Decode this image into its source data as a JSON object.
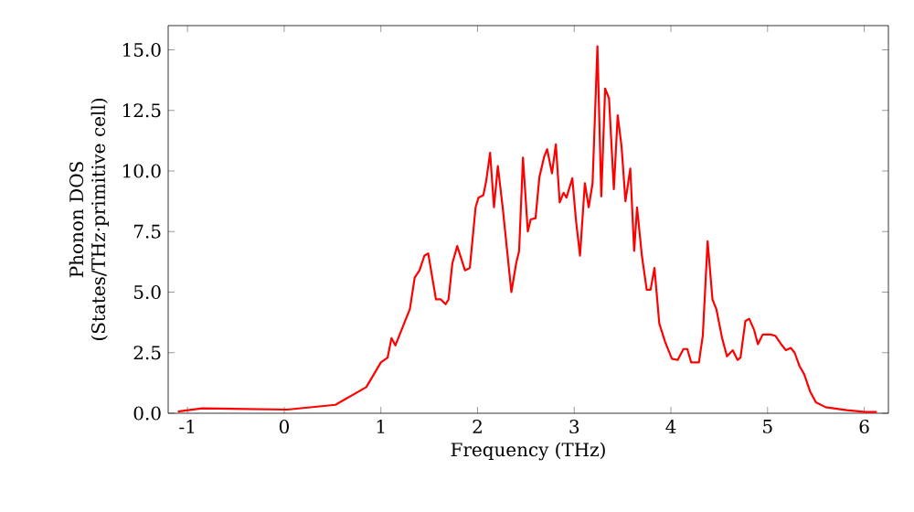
{
  "chart_data": {
    "type": "line",
    "xlabel": "Frequency (THz)",
    "ylabel": "Phonon DOS\n(States/THz·primitive cell)",
    "xlim": [
      -1.2,
      6.25
    ],
    "ylim": [
      0,
      16
    ],
    "xticks": [
      -1,
      0,
      1,
      2,
      3,
      4,
      5,
      6
    ],
    "yticks": [
      {
        "value": 0,
        "label": "0.0"
      },
      {
        "value": 2.5,
        "label": "2.5"
      },
      {
        "value": 5,
        "label": "5.0"
      },
      {
        "value": 7.5,
        "label": "7.5"
      },
      {
        "value": 10,
        "label": "10.0"
      },
      {
        "value": 12.5,
        "label": "12.5"
      },
      {
        "value": 15,
        "label": "15.0"
      }
    ],
    "grid": false,
    "marker": "none",
    "line_style": "solid",
    "series": [
      {
        "color": "#ff0000",
        "x": [
          -1.1,
          -0.85,
          0.03,
          0.53,
          0.85,
          1.0,
          1.07,
          1.11,
          1.15,
          1.24,
          1.3,
          1.35,
          1.4,
          1.45,
          1.49,
          1.57,
          1.62,
          1.67,
          1.7,
          1.74,
          1.79,
          1.87,
          1.92,
          1.98,
          2.01,
          2.06,
          2.09,
          2.13,
          2.17,
          2.21,
          2.26,
          2.35,
          2.4,
          2.43,
          2.47,
          2.52,
          2.55,
          2.6,
          2.64,
          2.69,
          2.72,
          2.77,
          2.81,
          2.85,
          2.89,
          2.92,
          2.98,
          3.02,
          3.06,
          3.11,
          3.15,
          3.19,
          3.24,
          3.28,
          3.32,
          3.36,
          3.41,
          3.45,
          3.49,
          3.53,
          3.58,
          3.62,
          3.65,
          3.7,
          3.75,
          3.79,
          3.83,
          3.88,
          3.94,
          4.01,
          4.07,
          4.13,
          4.17,
          4.21,
          4.29,
          4.33,
          4.38,
          4.43,
          4.47,
          4.53,
          4.58,
          4.64,
          4.69,
          4.72,
          4.77,
          4.81,
          4.86,
          4.9,
          4.95,
          5.03,
          5.08,
          5.14,
          5.19,
          5.24,
          5.28,
          5.33,
          5.38,
          5.44,
          5.5,
          5.6,
          5.82,
          6.01,
          6.13
        ],
        "values": [
          0.07,
          0.2,
          0.15,
          0.35,
          1.08,
          2.1,
          2.3,
          3.1,
          2.8,
          3.7,
          4.3,
          5.6,
          5.9,
          6.5,
          6.6,
          4.7,
          4.7,
          4.5,
          4.7,
          6.2,
          6.9,
          5.9,
          6.0,
          8.5,
          8.9,
          9.0,
          9.6,
          10.75,
          8.5,
          10.2,
          8.5,
          5.0,
          6.2,
          6.7,
          10.55,
          7.5,
          8.0,
          8.05,
          9.75,
          10.6,
          10.9,
          9.9,
          11.1,
          8.7,
          9.1,
          8.9,
          9.7,
          7.9,
          6.5,
          9.5,
          8.5,
          9.5,
          15.15,
          8.95,
          13.4,
          13.0,
          9.25,
          12.3,
          11.0,
          8.75,
          10.1,
          6.7,
          8.5,
          6.5,
          5.1,
          5.1,
          6.0,
          3.7,
          2.95,
          2.25,
          2.2,
          2.65,
          2.65,
          2.1,
          2.1,
          3.2,
          7.1,
          4.7,
          4.3,
          3.1,
          2.35,
          2.6,
          2.2,
          2.3,
          3.8,
          3.9,
          3.45,
          2.85,
          3.25,
          3.25,
          3.2,
          2.85,
          2.6,
          2.7,
          2.5,
          1.95,
          1.6,
          0.9,
          0.45,
          0.25,
          0.13,
          0.05,
          0.05
        ]
      }
    ]
  }
}
